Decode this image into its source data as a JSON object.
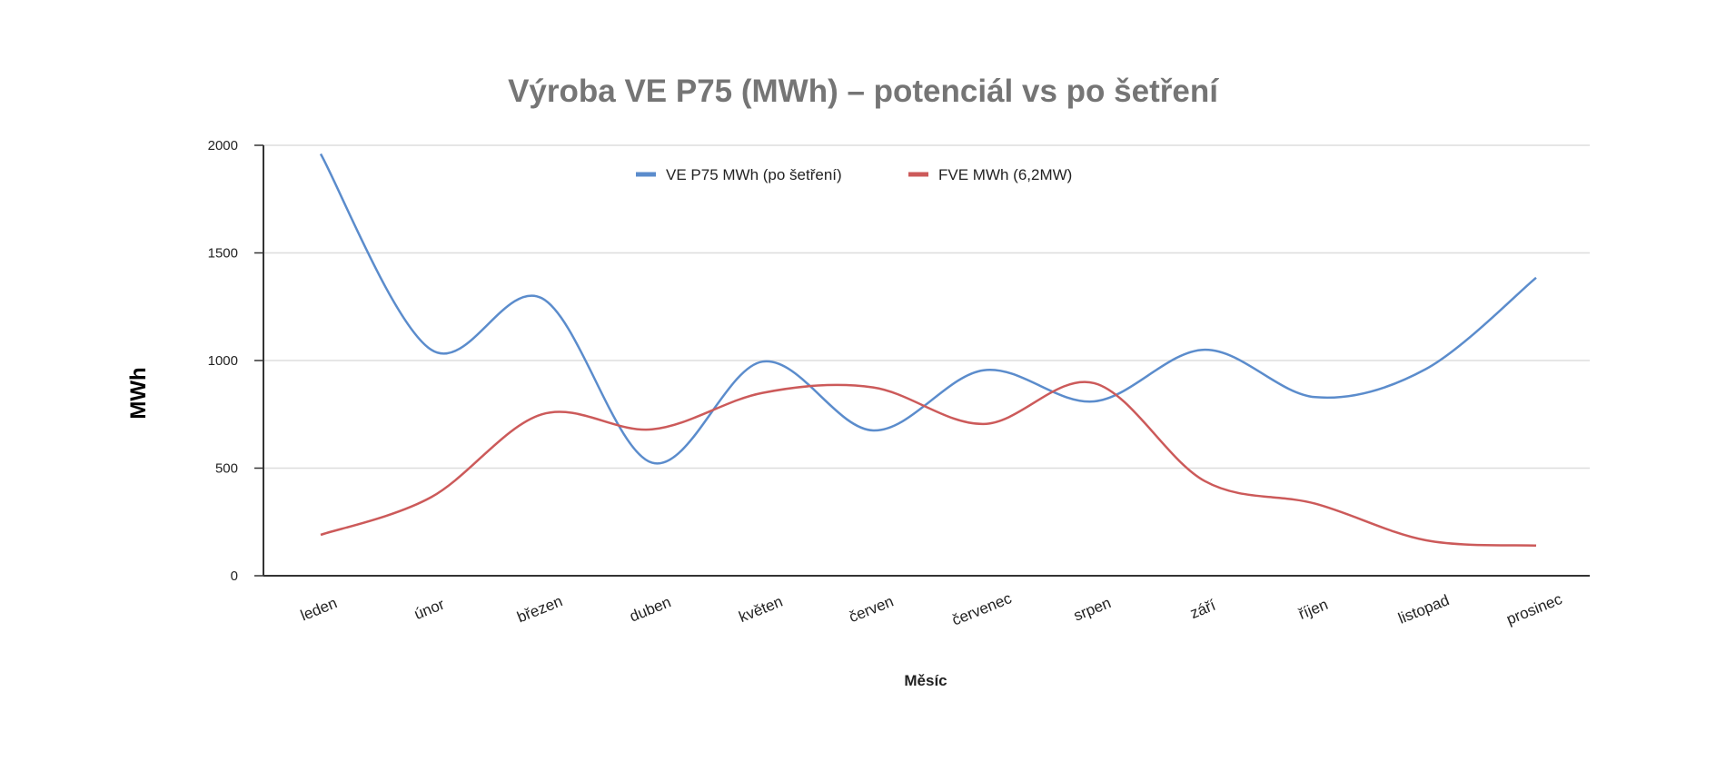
{
  "chart_data": {
    "type": "line",
    "title": "Výroba VE P75 (MWh) – potenciál vs po šetření",
    "xlabel": "Měsíc",
    "ylabel": "MWh",
    "categories": [
      "leden",
      "únor",
      "březen",
      "duben",
      "květen",
      "červen",
      "červenec",
      "srpen",
      "září",
      "říjen",
      "listopad",
      "prosinec"
    ],
    "ylim": [
      0,
      2000
    ],
    "yticks": [
      0,
      500,
      1000,
      1500,
      2000
    ],
    "grid": true,
    "legend_position": "top-center",
    "smooth": true,
    "series": [
      {
        "name": "VE P75 MWh (po šetření)",
        "color": "#5b8ccc",
        "values": [
          1960,
          1050,
          1290,
          525,
          995,
          675,
          955,
          810,
          1050,
          830,
          960,
          1385
        ]
      },
      {
        "name": "FVE MWh (6,2MW)",
        "color": "#cc5a5a",
        "values": [
          190,
          365,
          750,
          680,
          850,
          875,
          705,
          895,
          440,
          335,
          165,
          140
        ]
      }
    ]
  }
}
